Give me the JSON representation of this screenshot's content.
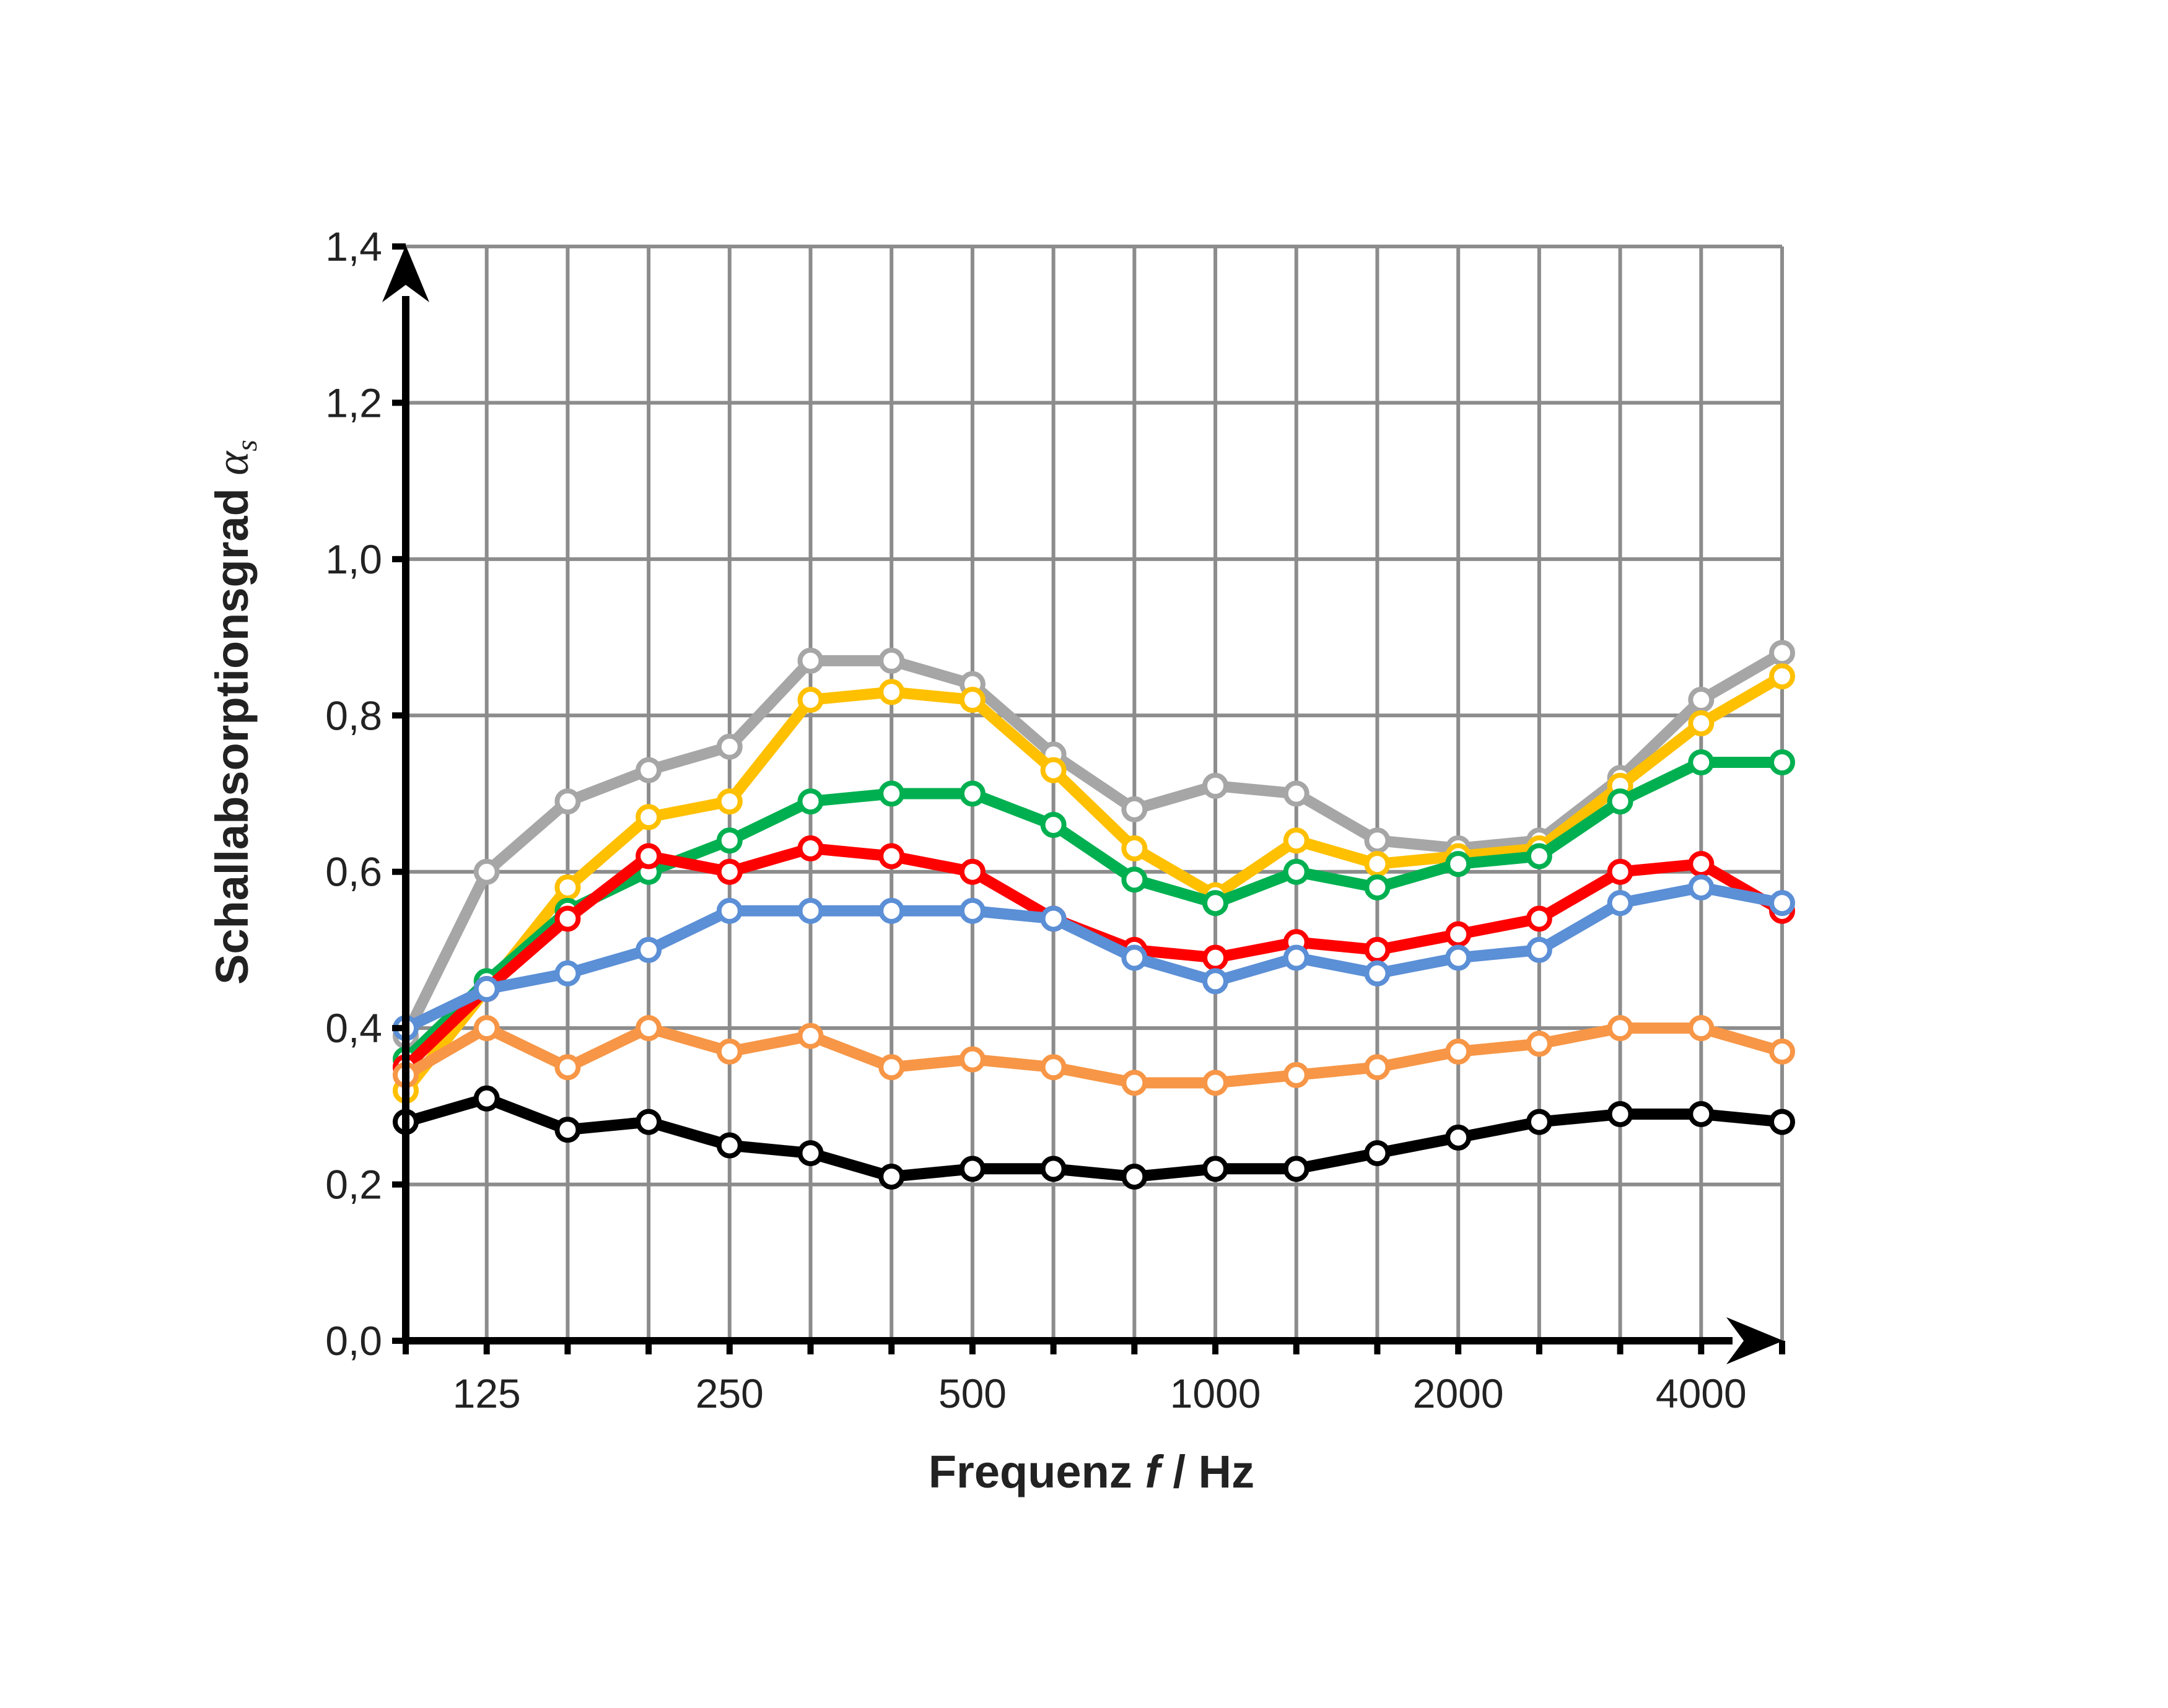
{
  "chart_data": {
    "type": "line",
    "title": "",
    "xlabel": "Frequenz f / Hz",
    "xlabel_parts": [
      "Frequenz ",
      "f",
      " / Hz"
    ],
    "ylabel": "Schallabsorptionsgrad αs",
    "ylabel_parts": [
      "Schallabsorptionsgrad ",
      "α",
      "s"
    ],
    "ylim": [
      0,
      1.4
    ],
    "ytick_step": 0.2,
    "ytick_labels": [
      "0,0",
      "0,2",
      "0,4",
      "0,6",
      "0,8",
      "1,0",
      "1,2",
      "1,4"
    ],
    "x": [
      100,
      125,
      160,
      200,
      250,
      315,
      400,
      500,
      630,
      800,
      1000,
      1250,
      1600,
      2000,
      2500,
      3150,
      4000,
      5000
    ],
    "xtick_labels": [
      {
        "index": 1,
        "label": "125"
      },
      {
        "index": 4,
        "label": "250"
      },
      {
        "index": 7,
        "label": "500"
      },
      {
        "index": 10,
        "label": "1000"
      },
      {
        "index": 13,
        "label": "2000"
      },
      {
        "index": 16,
        "label": "4000"
      }
    ],
    "grid": true,
    "legend": "none",
    "series": [
      {
        "name": "grey",
        "color": "#a6a6a6",
        "values": [
          0.39,
          0.6,
          0.69,
          0.73,
          0.76,
          0.87,
          0.87,
          0.84,
          0.75,
          0.68,
          0.71,
          0.7,
          0.64,
          0.63,
          0.64,
          0.72,
          0.82,
          0.88
        ]
      },
      {
        "name": "yellow",
        "color": "#ffc000",
        "values": [
          0.32,
          0.45,
          0.58,
          0.67,
          0.69,
          0.82,
          0.83,
          0.82,
          0.73,
          0.63,
          0.57,
          0.64,
          0.61,
          0.62,
          0.63,
          0.71,
          0.79,
          0.85
        ]
      },
      {
        "name": "green",
        "color": "#00b050",
        "values": [
          0.36,
          0.46,
          0.55,
          0.6,
          0.64,
          0.69,
          0.7,
          0.7,
          0.66,
          0.59,
          0.56,
          0.6,
          0.58,
          0.61,
          0.62,
          0.69,
          0.74,
          0.74
        ]
      },
      {
        "name": "red",
        "color": "#ff0000",
        "values": [
          0.35,
          0.45,
          0.54,
          0.62,
          0.6,
          0.63,
          0.62,
          0.6,
          0.54,
          0.5,
          0.49,
          0.51,
          0.5,
          0.52,
          0.54,
          0.6,
          0.61,
          0.55
        ]
      },
      {
        "name": "blue",
        "color": "#5b8fd6",
        "values": [
          0.4,
          0.45,
          0.47,
          0.5,
          0.55,
          0.55,
          0.55,
          0.55,
          0.54,
          0.49,
          0.46,
          0.49,
          0.47,
          0.49,
          0.5,
          0.56,
          0.58,
          0.56
        ]
      },
      {
        "name": "orange",
        "color": "#f79646",
        "values": [
          0.34,
          0.4,
          0.35,
          0.4,
          0.37,
          0.39,
          0.35,
          0.36,
          0.35,
          0.33,
          0.33,
          0.34,
          0.35,
          0.37,
          0.38,
          0.4,
          0.4,
          0.37
        ]
      },
      {
        "name": "black",
        "color": "#000000",
        "values": [
          0.28,
          0.31,
          0.27,
          0.28,
          0.25,
          0.24,
          0.21,
          0.22,
          0.22,
          0.21,
          0.22,
          0.22,
          0.24,
          0.26,
          0.28,
          0.29,
          0.29,
          0.28
        ]
      }
    ]
  }
}
